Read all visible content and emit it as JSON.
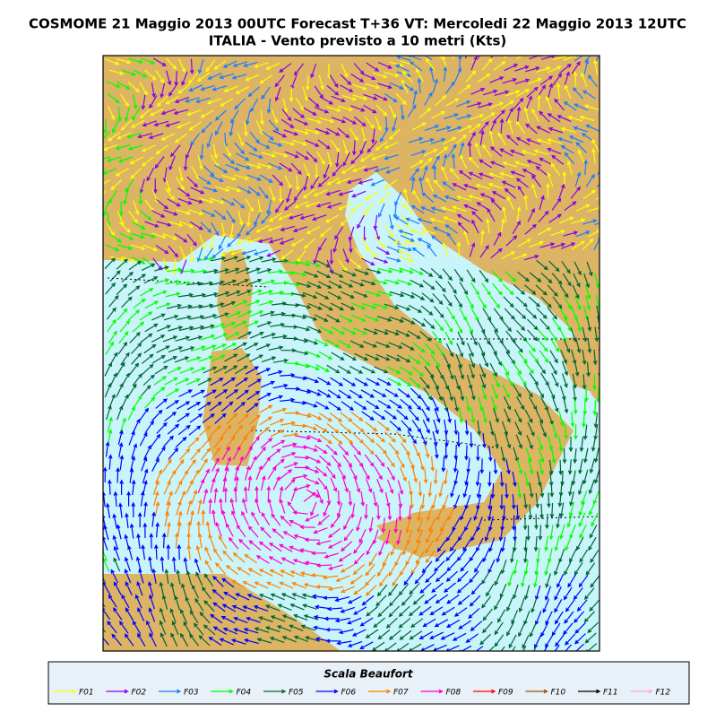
{
  "header": {
    "title_line1": "COSMOME 21 Maggio 2013 00UTC Forecast T+36 VT: Mercoledi 22 Maggio 2013 12UTC",
    "title_line2": "ITALIA - Vento previsto a 10 metri (Kts)"
  },
  "legend": {
    "title": "Scala Beaufort",
    "items": [
      {
        "label": "F01",
        "color": "#ffff00"
      },
      {
        "label": "F02",
        "color": "#8a00e6"
      },
      {
        "label": "F03",
        "color": "#1e7cff"
      },
      {
        "label": "F04",
        "color": "#00ff00"
      },
      {
        "label": "F05",
        "color": "#006633"
      },
      {
        "label": "F06",
        "color": "#0000ff"
      },
      {
        "label": "F07",
        "color": "#ff8000"
      },
      {
        "label": "F08",
        "color": "#ff00cc"
      },
      {
        "label": "F09",
        "color": "#ff0000"
      },
      {
        "label": "F10",
        "color": "#a05000"
      },
      {
        "label": "F11",
        "color": "#000000"
      },
      {
        "label": "F12",
        "color": "#ffaacc"
      }
    ]
  }
}
